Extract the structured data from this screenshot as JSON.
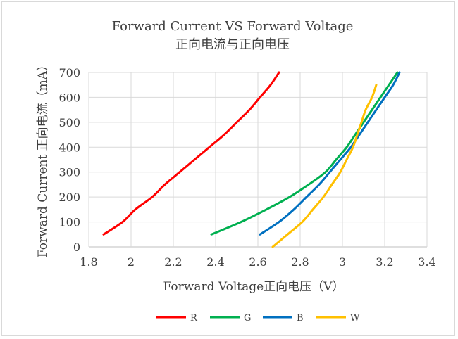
{
  "chart_data": {
    "type": "line",
    "title": "Forward Current VS Forward Voltage",
    "subtitle": "正向电流与正向电压",
    "xlabel": "Forward Voltage正向电压（V）",
    "ylabel": "Forward Current 正向电流（mA）",
    "xlim": [
      1.8,
      3.4
    ],
    "ylim": [
      0,
      700
    ],
    "xticks": [
      1.8,
      2,
      2.2,
      2.4,
      2.6,
      2.8,
      3,
      3.2,
      3.4
    ],
    "xtick_labels": [
      "1.8",
      "2",
      "2.2",
      "2.4",
      "2.6",
      "2.8",
      "3",
      "3.2",
      "3.4"
    ],
    "yticks": [
      0,
      100,
      200,
      300,
      400,
      500,
      600,
      700
    ],
    "ytick_labels": [
      "0",
      "100",
      "200",
      "300",
      "400",
      "500",
      "600",
      "700"
    ],
    "grid": true,
    "legend": "bottom",
    "series": [
      {
        "name": "R",
        "color": "#ff0000",
        "points": [
          [
            1.87,
            50
          ],
          [
            1.96,
            100
          ],
          [
            2.02,
            150
          ],
          [
            2.1,
            200
          ],
          [
            2.16,
            250
          ],
          [
            2.23,
            300
          ],
          [
            2.3,
            350
          ],
          [
            2.37,
            400
          ],
          [
            2.44,
            450
          ],
          [
            2.5,
            500
          ],
          [
            2.56,
            550
          ],
          [
            2.61,
            600
          ],
          [
            2.66,
            650
          ],
          [
            2.7,
            700
          ]
        ]
      },
      {
        "name": "G",
        "color": "#00b050",
        "points": [
          [
            2.38,
            50
          ],
          [
            2.52,
            100
          ],
          [
            2.64,
            150
          ],
          [
            2.75,
            200
          ],
          [
            2.84,
            250
          ],
          [
            2.92,
            300
          ],
          [
            2.97,
            350
          ],
          [
            3.02,
            400
          ],
          [
            3.06,
            450
          ],
          [
            3.1,
            500
          ],
          [
            3.14,
            550
          ],
          [
            3.18,
            600
          ],
          [
            3.22,
            650
          ],
          [
            3.26,
            700
          ]
        ]
      },
      {
        "name": "B",
        "color": "#0070c0",
        "points": [
          [
            2.61,
            50
          ],
          [
            2.7,
            100
          ],
          [
            2.77,
            150
          ],
          [
            2.83,
            200
          ],
          [
            2.89,
            250
          ],
          [
            2.94,
            300
          ],
          [
            2.99,
            350
          ],
          [
            3.04,
            400
          ],
          [
            3.08,
            450
          ],
          [
            3.12,
            500
          ],
          [
            3.16,
            550
          ],
          [
            3.2,
            600
          ],
          [
            3.24,
            650
          ],
          [
            3.27,
            700
          ]
        ]
      },
      {
        "name": "W",
        "color": "#ffc000",
        "points": [
          [
            2.67,
            0
          ],
          [
            2.74,
            50
          ],
          [
            2.81,
            100
          ],
          [
            2.86,
            150
          ],
          [
            2.91,
            200
          ],
          [
            2.95,
            250
          ],
          [
            2.99,
            300
          ],
          [
            3.02,
            350
          ],
          [
            3.05,
            400
          ],
          [
            3.07,
            450
          ],
          [
            3.09,
            500
          ],
          [
            3.11,
            550
          ],
          [
            3.14,
            600
          ],
          [
            3.16,
            650
          ]
        ]
      }
    ]
  }
}
